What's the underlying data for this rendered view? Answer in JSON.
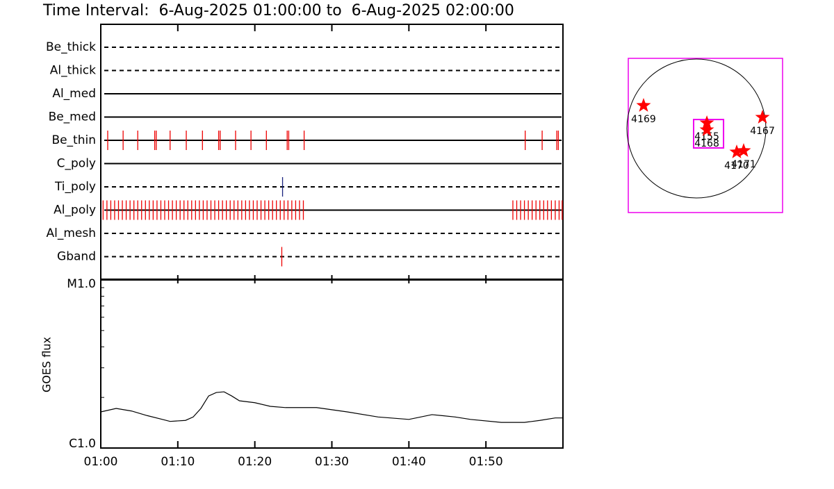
{
  "chart_data": [
    {
      "type": "timeline",
      "title": "Time Interval:  6-Aug-2025 01:00:00 to  6-Aug-2025 02:00:00",
      "xlim": [
        0,
        60
      ],
      "series": [
        {
          "name": "Be_thick",
          "style": "dashed",
          "color": "#ee0000",
          "events": []
        },
        {
          "name": "Al_thick",
          "style": "dashed",
          "color": "#ee0000",
          "events": []
        },
        {
          "name": "Al_med",
          "style": "solid",
          "color": "#ee0000",
          "events": []
        },
        {
          "name": "Be_med",
          "style": "solid",
          "color": "#ee0000",
          "events": []
        },
        {
          "name": "Be_thin",
          "style": "solid",
          "color": "#ee0000",
          "events": [
            0.9,
            2.9,
            4.8,
            7.0,
            7.2,
            9.0,
            11.1,
            13.2,
            15.3,
            15.5,
            17.5,
            19.5,
            21.5,
            24.2,
            24.4,
            26.4,
            55.1,
            57.3,
            59.2,
            59.4
          ]
        },
        {
          "name": "C_poly",
          "style": "solid",
          "color": "#ee0000",
          "events": []
        },
        {
          "name": "Ti_poly",
          "style": "dashed",
          "color": "#1a237e",
          "events": [
            23.6
          ]
        },
        {
          "name": "Al_poly",
          "style": "solid",
          "color": "#ee0000",
          "events": [
            0.3,
            0.8,
            1.3,
            1.8,
            2.3,
            2.8,
            3.3,
            3.8,
            4.3,
            4.8,
            5.3,
            5.8,
            6.3,
            6.8,
            7.3,
            7.8,
            8.3,
            8.8,
            9.3,
            9.8,
            10.3,
            10.8,
            11.3,
            11.8,
            12.3,
            12.8,
            13.3,
            13.8,
            14.3,
            14.8,
            15.3,
            15.8,
            16.3,
            16.8,
            17.3,
            17.8,
            18.3,
            18.8,
            19.3,
            19.8,
            20.3,
            20.8,
            21.3,
            21.8,
            22.3,
            22.8,
            23.3,
            23.8,
            24.3,
            24.8,
            25.3,
            25.8,
            26.3,
            53.5,
            54.0,
            54.5,
            55.0,
            55.5,
            56.0,
            56.5,
            57.0,
            57.5,
            58.0,
            58.5,
            59.0,
            59.5,
            59.9
          ]
        },
        {
          "name": "Al_mesh",
          "style": "dashed",
          "color": "#ee0000",
          "events": []
        },
        {
          "name": "Gband",
          "style": "dashed",
          "color": "#ee0000",
          "events": [
            23.5
          ]
        }
      ]
    },
    {
      "type": "line",
      "ylabel": "GOES flux",
      "log_y": true,
      "color": "#000000",
      "xlim": [
        0,
        60
      ],
      "xticks": [
        {
          "value": 0,
          "label": "01:00"
        },
        {
          "value": 10,
          "label": "01:10"
        },
        {
          "value": 20,
          "label": "01:20"
        },
        {
          "value": 30,
          "label": "01:30"
        },
        {
          "value": 40,
          "label": "01:40"
        },
        {
          "value": 50,
          "label": "01:50"
        }
      ],
      "ylim": [
        1e-06,
        1e-05
      ],
      "yticks": [
        {
          "value": 1e-06,
          "label": "C1.0"
        },
        {
          "value": 1e-05,
          "label": "M1.0"
        }
      ],
      "x": [
        0,
        2,
        4,
        6,
        8,
        9,
        11,
        12,
        13,
        14,
        15,
        16,
        17,
        18,
        20,
        22,
        24,
        28,
        32,
        36,
        40,
        43,
        46,
        48,
        52,
        55,
        57,
        59,
        60
      ],
      "values": [
        1.64e-06,
        1.72e-06,
        1.66e-06,
        1.56e-06,
        1.48e-06,
        1.44e-06,
        1.46e-06,
        1.53e-06,
        1.72e-06,
        2.04e-06,
        2.14e-06,
        2.16e-06,
        2.04e-06,
        1.91e-06,
        1.86e-06,
        1.77e-06,
        1.74e-06,
        1.74e-06,
        1.64e-06,
        1.53e-06,
        1.48e-06,
        1.58e-06,
        1.53e-06,
        1.48e-06,
        1.42e-06,
        1.42e-06,
        1.46e-06,
        1.51e-06,
        1.51e-06
      ]
    },
    {
      "type": "map",
      "xlim": [
        -931,
        1178
      ],
      "ylim": [
        -1150,
        960
      ],
      "disk_radius": 950,
      "frame_color": "#ee00ee",
      "marker_color": "#ff0000",
      "fov_xlim": [
        -38,
        371
      ],
      "fov_ylim": [
        -266,
        123
      ],
      "labels": [
        "4169",
        "4155",
        "4168",
        "4167",
        "4170",
        "4171"
      ],
      "x": [
        -722,
        143,
        143,
        903,
        551,
        646
      ],
      "y": [
        314,
        76,
        -19,
        152,
        -323,
        -304
      ]
    }
  ]
}
